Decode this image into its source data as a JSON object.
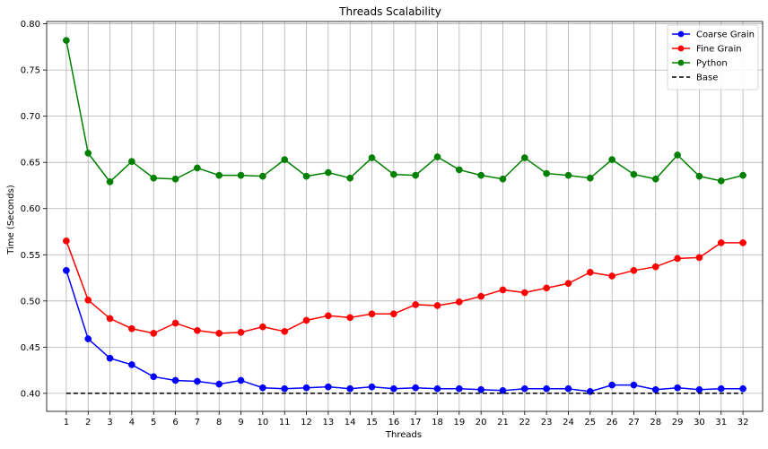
{
  "chart_data": {
    "type": "line",
    "title": "Threads Scalability",
    "xlabel": "Threads",
    "ylabel": "Time (Seconds)",
    "x": [
      1,
      2,
      3,
      4,
      5,
      6,
      7,
      8,
      9,
      10,
      11,
      12,
      13,
      14,
      15,
      16,
      17,
      18,
      19,
      20,
      21,
      22,
      23,
      24,
      25,
      26,
      27,
      28,
      29,
      30,
      31,
      32
    ],
    "xlim": [
      0.1,
      32.9
    ],
    "ylim": [
      0.3805,
      0.8025
    ],
    "yticks": [
      0.4,
      0.45,
      0.5,
      0.55,
      0.6,
      0.65,
      0.7,
      0.75,
      0.8
    ],
    "ytick_labels": [
      "0.40",
      "0.45",
      "0.50",
      "0.55",
      "0.60",
      "0.65",
      "0.70",
      "0.75",
      "0.80"
    ],
    "grid": true,
    "legend_position": "top-right",
    "series": [
      {
        "name": "Coarse Grain",
        "color": "#0000ff",
        "style": "solid-marker",
        "values": [
          0.533,
          0.459,
          0.438,
          0.431,
          0.418,
          0.414,
          0.413,
          0.41,
          0.414,
          0.406,
          0.405,
          0.406,
          0.407,
          0.405,
          0.407,
          0.405,
          0.406,
          0.405,
          0.405,
          0.404,
          0.403,
          0.405,
          0.405,
          0.405,
          0.402,
          0.409,
          0.409,
          0.404,
          0.406,
          0.404,
          0.405,
          0.405
        ]
      },
      {
        "name": "Fine Grain",
        "color": "#ff0000",
        "style": "solid-marker",
        "values": [
          0.565,
          0.501,
          0.481,
          0.47,
          0.465,
          0.476,
          0.468,
          0.465,
          0.466,
          0.472,
          0.467,
          0.479,
          0.484,
          0.482,
          0.486,
          0.486,
          0.496,
          0.495,
          0.499,
          0.505,
          0.512,
          0.509,
          0.514,
          0.519,
          0.531,
          0.527,
          0.533,
          0.537,
          0.546,
          0.547,
          0.563,
          0.563
        ]
      },
      {
        "name": "Python",
        "color": "#008000",
        "style": "solid-marker",
        "values": [
          0.782,
          0.66,
          0.629,
          0.651,
          0.633,
          0.632,
          0.644,
          0.636,
          0.636,
          0.635,
          0.653,
          0.635,
          0.639,
          0.633,
          0.655,
          0.637,
          0.636,
          0.656,
          0.642,
          0.636,
          0.632,
          0.655,
          0.638,
          0.636,
          0.633,
          0.653,
          0.637,
          0.632,
          0.658,
          0.635,
          0.63,
          0.636
        ]
      },
      {
        "name": "Base",
        "color": "#000000",
        "style": "dashed",
        "values": [
          0.4,
          0.4,
          0.4,
          0.4,
          0.4,
          0.4,
          0.4,
          0.4,
          0.4,
          0.4,
          0.4,
          0.4,
          0.4,
          0.4,
          0.4,
          0.4,
          0.4,
          0.4,
          0.4,
          0.4,
          0.4,
          0.4,
          0.4,
          0.4,
          0.4,
          0.4,
          0.4,
          0.4,
          0.4,
          0.4,
          0.4,
          0.4
        ]
      }
    ]
  }
}
